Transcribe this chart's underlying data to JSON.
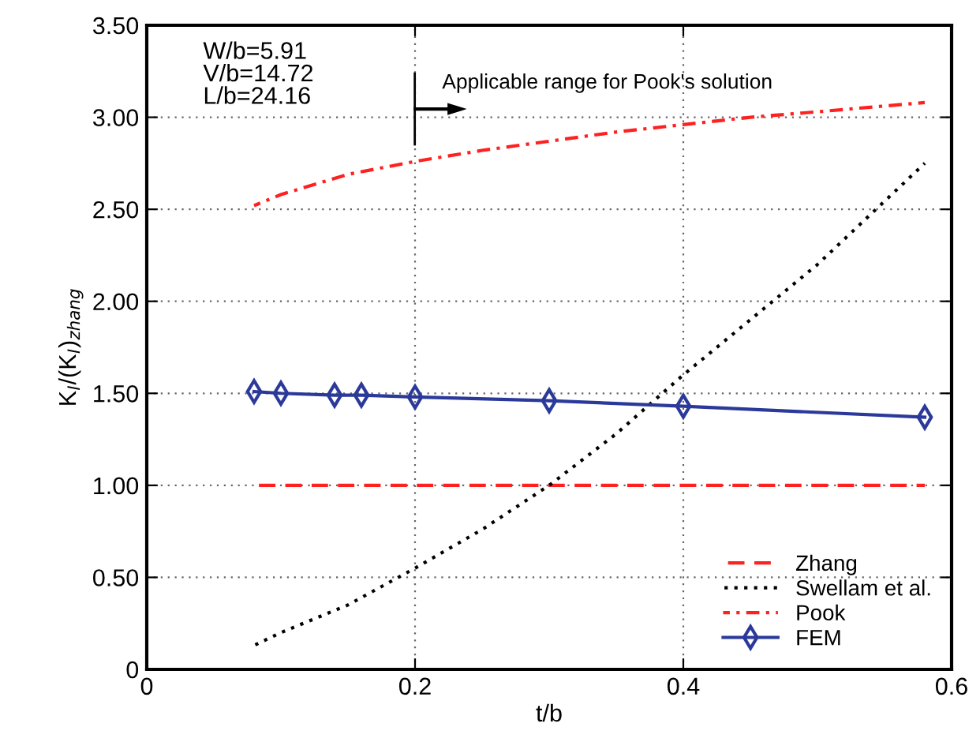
{
  "chart_data": {
    "type": "line",
    "xlabel": "t/b",
    "ylabel": "K$_{I}$/(K$_{I}$)$_{zhang}$",
    "xlim": [
      0,
      0.6
    ],
    "ylim": [
      0,
      3.5
    ],
    "xticks": [
      0,
      0.2,
      0.4,
      0.6
    ],
    "yticks": [
      0,
      {
        "value": 0.5,
        "label": "0.50"
      },
      {
        "value": 1,
        "label": "1.00"
      },
      {
        "value": 1.5,
        "label": "1.50"
      },
      {
        "value": 2,
        "label": "2.00"
      },
      {
        "value": 2.5,
        "label": "2.50"
      },
      {
        "value": 3,
        "label": "3.00"
      },
      {
        "value": 3.5,
        "label": "3.50"
      }
    ],
    "grid": true,
    "legend": "bottom right",
    "series": [
      {
        "name": "Zhang",
        "color": "#ff2020",
        "line_style": "dashed",
        "marker": "none",
        "x": [
          0.08,
          0.58
        ],
        "values": [
          1.0,
          1.0
        ]
      },
      {
        "name": "Swellam et al.",
        "color": "#000000",
        "line_style": "dotted",
        "marker": "none",
        "x": [
          0.08,
          0.1,
          0.15,
          0.2,
          0.25,
          0.3,
          0.35,
          0.4,
          0.45,
          0.5,
          0.58
        ],
        "values": [
          0.13,
          0.2,
          0.35,
          0.55,
          0.76,
          1.0,
          1.28,
          1.6,
          1.9,
          2.2,
          2.75
        ]
      },
      {
        "name": "Pook",
        "color": "#ff2020",
        "line_style": "dashdot",
        "marker": "none",
        "x": [
          0.08,
          0.1,
          0.15,
          0.2,
          0.25,
          0.3,
          0.35,
          0.4,
          0.45,
          0.5,
          0.58
        ],
        "values": [
          2.52,
          2.58,
          2.69,
          2.76,
          2.82,
          2.87,
          2.92,
          2.96,
          3.0,
          3.03,
          3.08
        ]
      },
      {
        "name": "FEM",
        "color": "#2b3a9a",
        "line_style": "solid",
        "marker": "diamond",
        "x": [
          0.08,
          0.1,
          0.14,
          0.16,
          0.2,
          0.3,
          0.4,
          0.58
        ],
        "values": [
          1.51,
          1.5,
          1.49,
          1.49,
          1.48,
          1.46,
          1.43,
          1.37
        ]
      }
    ],
    "annotations": [
      "W/b=5.91\nV/b=14.72\nL/b=24.16",
      "Applicable range for Pook's solution"
    ]
  }
}
